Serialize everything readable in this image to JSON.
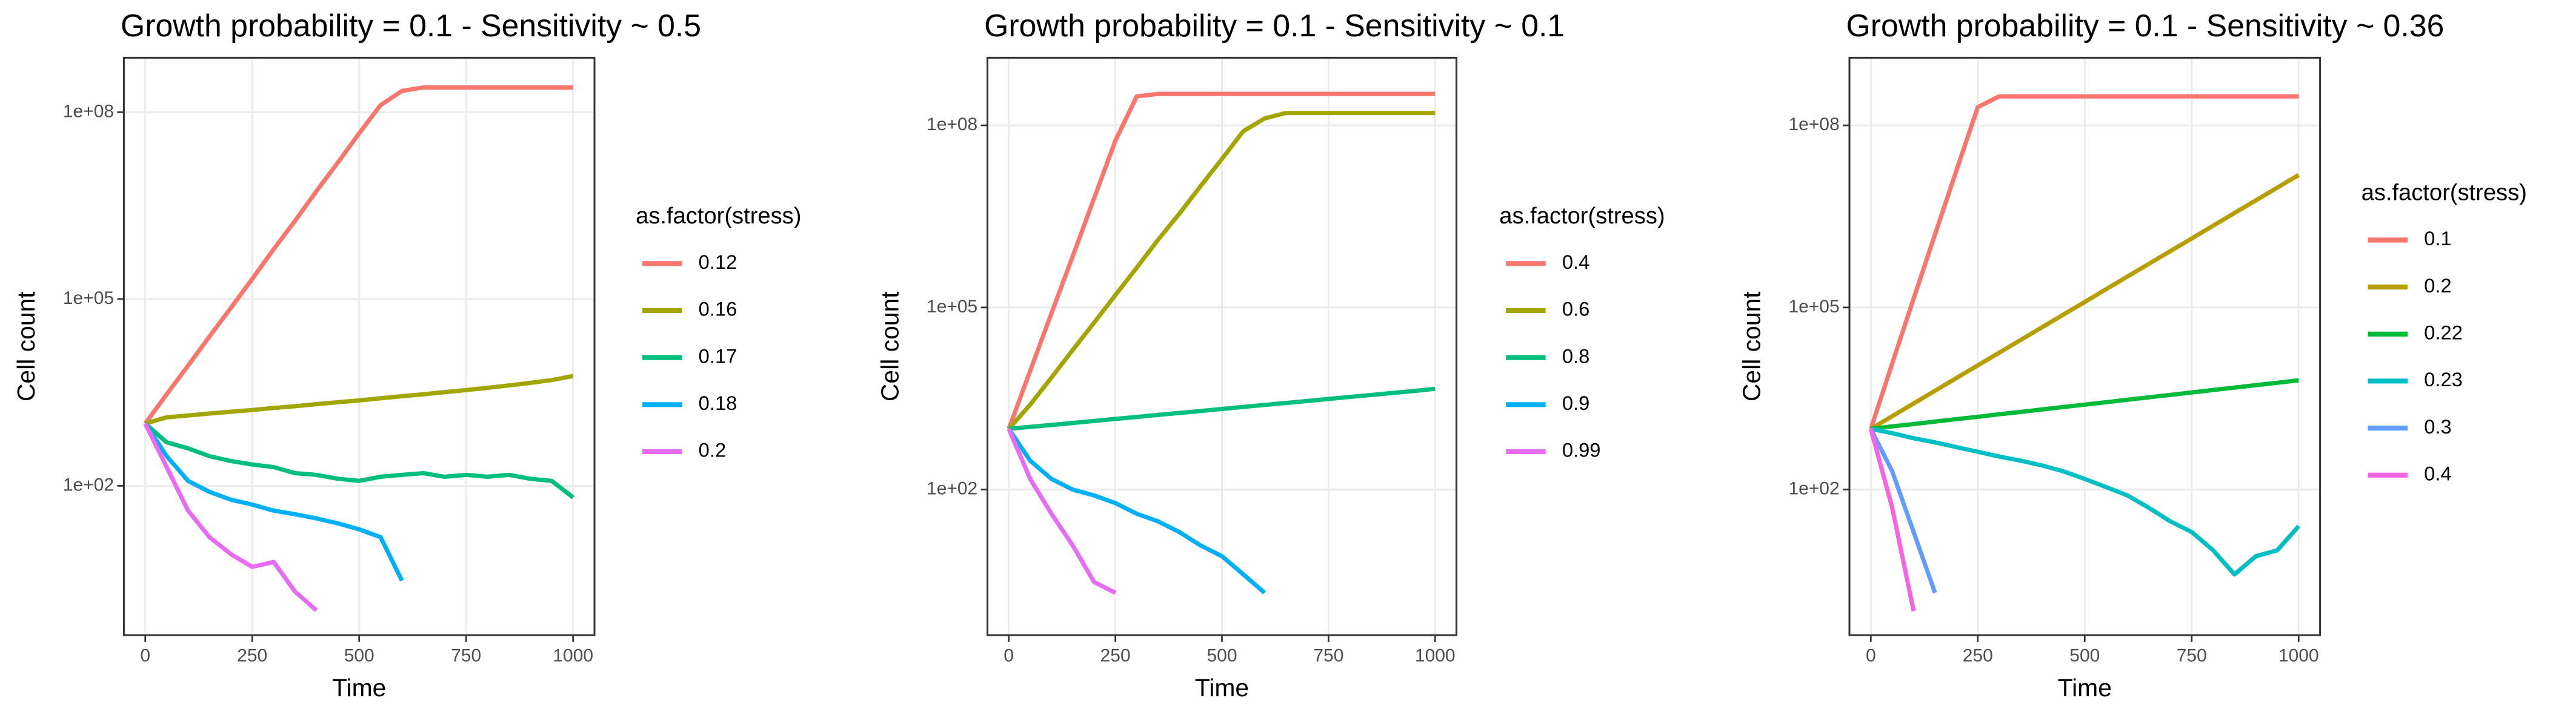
{
  "chart_data": [
    {
      "type": "line",
      "title": "Growth probability = 0.1 - Sensitivity ~ 0.5",
      "x_label": "Time",
      "y_label": "Cell count",
      "legend_title": "as.factor(stress)",
      "log_scale_y": true,
      "grid": true,
      "xlim": [
        -50,
        1050
      ],
      "ylim": [
        0.4,
        750000000
      ],
      "xticks": [
        0,
        250,
        500,
        750,
        1000
      ],
      "yticks": [
        {
          "value": 100,
          "label": "1e+02"
        },
        {
          "value": 100000,
          "label": "1e+05"
        },
        {
          "value": 100000000,
          "label": "1e+08"
        }
      ],
      "x": [
        0,
        50,
        100,
        150,
        200,
        250,
        300,
        350,
        400,
        450,
        500,
        550,
        600,
        650,
        700,
        750,
        800,
        850,
        900,
        950,
        1000
      ],
      "series": [
        {
          "name": "0.12",
          "color": "#F8766D",
          "values": [
            1000,
            2950,
            8500,
            25000,
            72000,
            210000,
            630000,
            1800000,
            5400000,
            15500000,
            46000000,
            130000000,
            220000000,
            250000000,
            250000000,
            250000000,
            250000000,
            250000000,
            250000000,
            250000000,
            250000000
          ]
        },
        {
          "name": "0.16",
          "color": "#A3A500",
          "values": [
            1000,
            1260,
            1350,
            1450,
            1550,
            1650,
            1780,
            1900,
            2050,
            2200,
            2350,
            2550,
            2750,
            2950,
            3200,
            3450,
            3750,
            4100,
            4500,
            5000,
            5800
          ]
        },
        {
          "name": "0.17",
          "color": "#00BF7D",
          "values": [
            1000,
            500,
            400,
            300,
            250,
            220,
            200,
            160,
            150,
            130,
            120,
            140,
            150,
            160,
            140,
            150,
            140,
            150,
            130,
            120,
            65
          ]
        },
        {
          "name": "0.18",
          "color": "#00B0F6",
          "values": [
            1000,
            300,
            120,
            80,
            60,
            50,
            40,
            35,
            30,
            25,
            20,
            15,
            3,
            null,
            null,
            null,
            null,
            null,
            null,
            null,
            null
          ]
        },
        {
          "name": "0.2",
          "color": "#E76BF3",
          "values": [
            1000,
            200,
            40,
            15,
            8,
            5,
            6,
            2,
            1,
            null,
            null,
            null,
            null,
            null,
            null,
            null,
            null,
            null,
            null,
            null,
            null
          ]
        }
      ]
    },
    {
      "type": "line",
      "title": "Growth probability = 0.1 - Sensitivity ~ 0.1",
      "x_label": "Time",
      "y_label": "Cell count",
      "legend_title": "as.factor(stress)",
      "log_scale_y": true,
      "grid": true,
      "xlim": [
        -50,
        1050
      ],
      "ylim": [
        0.4,
        1300000000
      ],
      "xticks": [
        0,
        250,
        500,
        750,
        1000
      ],
      "yticks": [
        {
          "value": 100,
          "label": "1e+02"
        },
        {
          "value": 100000,
          "label": "1e+05"
        },
        {
          "value": 100000000,
          "label": "1e+08"
        }
      ],
      "x": [
        0,
        50,
        100,
        150,
        200,
        250,
        300,
        350,
        400,
        450,
        500,
        550,
        600,
        650,
        700,
        750,
        800,
        850,
        900,
        950,
        1000
      ],
      "series": [
        {
          "name": "0.4",
          "color": "#F8766D",
          "values": [
            1000,
            9000,
            80000,
            700000,
            6300000,
            56000000,
            300000000,
            330000000,
            330000000,
            330000000,
            330000000,
            330000000,
            330000000,
            330000000,
            330000000,
            330000000,
            330000000,
            330000000,
            330000000,
            330000000,
            330000000
          ]
        },
        {
          "name": "0.6",
          "color": "#A3A500",
          "values": [
            1000,
            2500,
            7000,
            20000,
            56000,
            160000,
            450000,
            1300000,
            3500000,
            10000000,
            28000000,
            80000000,
            130000000,
            160000000,
            160000000,
            160000000,
            160000000,
            160000000,
            160000000,
            160000000,
            160000000
          ]
        },
        {
          "name": "0.8",
          "color": "#00BF7D",
          "values": [
            1000,
            1080,
            1160,
            1250,
            1350,
            1460,
            1570,
            1700,
            1830,
            1970,
            2130,
            2300,
            2480,
            2670,
            2880,
            3110,
            3360,
            3620,
            3900,
            4210,
            4570
          ]
        },
        {
          "name": "0.9",
          "color": "#00B0F6",
          "values": [
            1000,
            300,
            150,
            100,
            80,
            60,
            40,
            30,
            20,
            12,
            8,
            4,
            2,
            null,
            null,
            null,
            null,
            null,
            null,
            null,
            null
          ]
        },
        {
          "name": "0.99",
          "color": "#E76BF3",
          "values": [
            1000,
            150,
            40,
            12,
            3,
            2,
            null,
            null,
            null,
            null,
            null,
            null,
            null,
            null,
            null,
            null,
            null,
            null,
            null,
            null,
            null
          ]
        }
      ]
    },
    {
      "type": "line",
      "title": "Growth probability = 0.1 - Sensitivity ~ 0.36",
      "x_label": "Time",
      "y_label": "Cell count",
      "legend_title": "as.factor(stress)",
      "log_scale_y": true,
      "grid": true,
      "xlim": [
        -50,
        1050
      ],
      "ylim": [
        0.4,
        1300000000
      ],
      "xticks": [
        0,
        250,
        500,
        750,
        1000
      ],
      "yticks": [
        {
          "value": 100,
          "label": "1e+02"
        },
        {
          "value": 100000,
          "label": "1e+05"
        },
        {
          "value": 100000000,
          "label": "1e+08"
        }
      ],
      "x": [
        0,
        50,
        100,
        150,
        200,
        250,
        300,
        350,
        400,
        450,
        500,
        550,
        600,
        650,
        700,
        750,
        800,
        850,
        900,
        950,
        1000
      ],
      "series": [
        {
          "name": "0.1",
          "color": "#F8766D",
          "values": [
            1000,
            12000,
            140000,
            1600000,
            18000000,
            200000000,
            300000000,
            300000000,
            300000000,
            300000000,
            300000000,
            300000000,
            300000000,
            300000000,
            300000000,
            300000000,
            300000000,
            300000000,
            300000000,
            300000000,
            300000000
          ]
        },
        {
          "name": "0.2",
          "color": "#B79F00",
          "values": [
            1000,
            1620,
            2620,
            4240,
            6870,
            11100,
            18000,
            29100,
            47100,
            76300,
            123000,
            200000,
            324000,
            524000,
            848000,
            1370000,
            2220000,
            3600000,
            5820000,
            9420000,
            15200000
          ]
        },
        {
          "name": "0.22",
          "color": "#00BA38",
          "values": [
            1000,
            1100,
            1200,
            1320,
            1450,
            1580,
            1740,
            1900,
            2090,
            2290,
            2510,
            2750,
            3020,
            3310,
            3630,
            3980,
            4370,
            4790,
            5250,
            5750,
            6310
          ]
        },
        {
          "name": "0.23",
          "color": "#00BFC4",
          "values": [
            1000,
            850,
            700,
            600,
            500,
            420,
            350,
            300,
            250,
            200,
            150,
            110,
            80,
            50,
            30,
            20,
            10,
            4,
            8,
            10,
            25
          ]
        },
        {
          "name": "0.3",
          "color": "#619CFF",
          "values": [
            1000,
            200,
            20,
            2,
            null,
            null,
            null,
            null,
            null,
            null,
            null,
            null,
            null,
            null,
            null,
            null,
            null,
            null,
            null,
            null,
            null
          ]
        },
        {
          "name": "0.4",
          "color": "#F564E3",
          "values": [
            1000,
            50,
            1,
            null,
            null,
            null,
            null,
            null,
            null,
            null,
            null,
            null,
            null,
            null,
            null,
            null,
            null,
            null,
            null,
            null,
            null
          ]
        }
      ]
    }
  ]
}
